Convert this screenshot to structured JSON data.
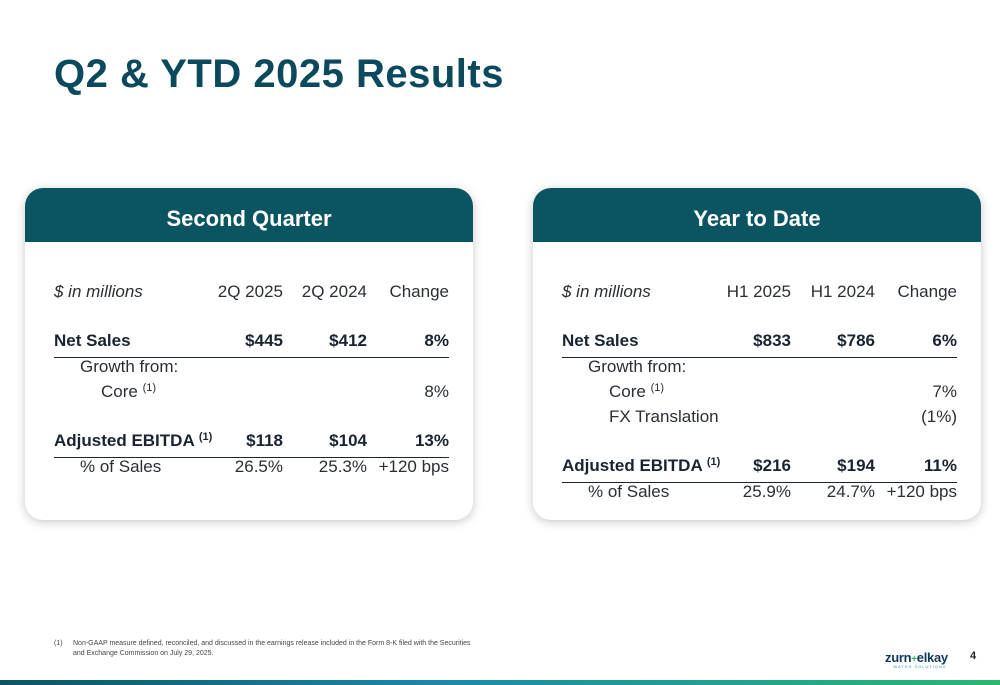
{
  "title": "Q2 & YTD 2025 Results",
  "colors": {
    "title": "#0b4a5c",
    "card_header": "#0b5563",
    "accent_green": "#2bb673",
    "accent_blue": "#1c8aa8"
  },
  "second_quarter": {
    "heading": "Second Quarter",
    "unit_label": "$ in millions",
    "col1": "2Q 2025",
    "col2": "2Q 2024",
    "col3": "Change",
    "net_sales": {
      "label": "Net Sales",
      "v1": "$445",
      "v2": "$412",
      "v3": "8%"
    },
    "growth_from": "Growth from:",
    "core": {
      "label": "Core",
      "sup": "(1)",
      "v3": "8%"
    },
    "adj_ebitda": {
      "label": "Adjusted EBITDA",
      "sup": "(1)",
      "v1": "$118",
      "v2": "$104",
      "v3": "13%"
    },
    "pct_sales": {
      "label": "% of Sales",
      "v1": "26.5%",
      "v2": "25.3%",
      "v3": "+120 bps"
    }
  },
  "year_to_date": {
    "heading": "Year to Date",
    "unit_label": "$ in millions",
    "col1": "H1 2025",
    "col2": "H1 2024",
    "col3": "Change",
    "net_sales": {
      "label": "Net Sales",
      "v1": "$833",
      "v2": "$786",
      "v3": "6%"
    },
    "growth_from": "Growth from:",
    "core": {
      "label": "Core",
      "sup": "(1)",
      "v3": "7%"
    },
    "fx": {
      "label": "FX Translation",
      "v3": "(1%)"
    },
    "adj_ebitda": {
      "label": "Adjusted EBITDA",
      "sup": "(1)",
      "v1": "$216",
      "v2": "$194",
      "v3": "11%"
    },
    "pct_sales": {
      "label": "% of Sales",
      "v1": "25.9%",
      "v2": "24.7%",
      "v3": "+120 bps"
    }
  },
  "footnote": {
    "num": "(1)",
    "text": "Non-GAAP measure defined, reconciled, and discussed in the earnings release included in the Form 8-K filed with the Securities and Exchange Commission on July 29, 2025."
  },
  "logo": {
    "name_left": "zurn",
    "plus": "+",
    "name_right": "elkay",
    "tagline": "WATER SOLUTIONS"
  },
  "page_number": "4"
}
